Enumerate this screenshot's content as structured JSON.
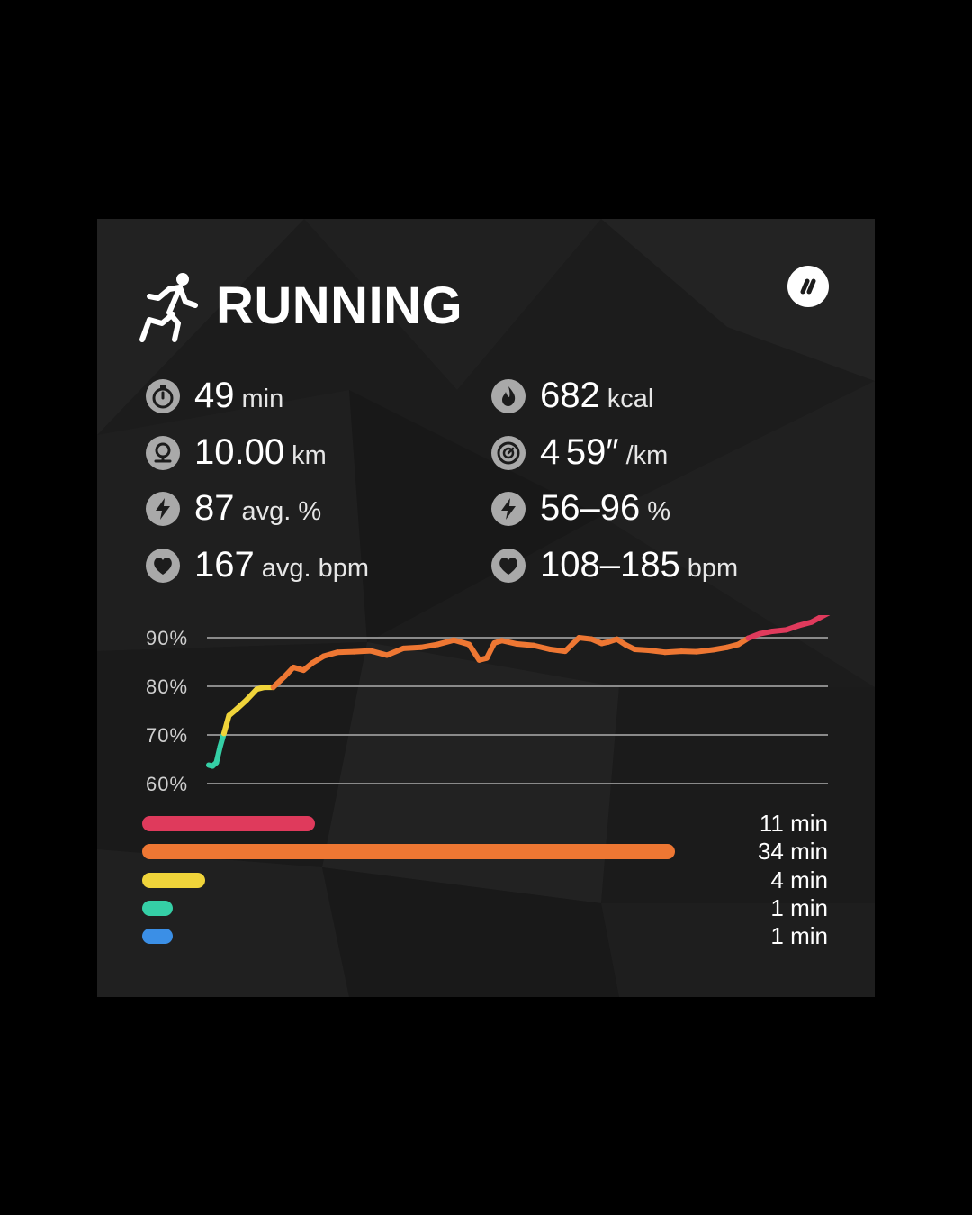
{
  "activity": {
    "title": "RUNNING",
    "icon": "running-person-icon",
    "brand_icon": "brand-logo-icon"
  },
  "stats": [
    {
      "icon": "stopwatch-icon",
      "value": "49",
      "unit": "min"
    },
    {
      "icon": "flame-icon",
      "value": "682",
      "unit": "kcal"
    },
    {
      "icon": "location-pin-icon",
      "value": "10.00",
      "unit": "km"
    },
    {
      "icon": "speedometer-icon",
      "value": "4 59″",
      "unit": "/km"
    },
    {
      "icon": "lightning-icon",
      "value": "87",
      "unit": "avg. %"
    },
    {
      "icon": "lightning-icon",
      "value": "56–96",
      "unit": "%"
    },
    {
      "icon": "heart-icon",
      "value": "167",
      "unit": "avg. bpm"
    },
    {
      "icon": "heart-icon",
      "value": "108–185",
      "unit": "bpm"
    }
  ],
  "chart_data": {
    "type": "line",
    "title": "",
    "xlabel": "",
    "ylabel": "",
    "y_ticks": [
      "90%",
      "80%",
      "70%",
      "60%"
    ],
    "ylim": [
      60,
      97
    ],
    "xlim": [
      0,
      49
    ],
    "grid": true,
    "x": [
      0,
      0.3,
      0.6,
      0.9,
      1.2,
      1.6,
      2.2,
      3,
      3.8,
      4.4,
      5.1,
      6,
      6.7,
      7.5,
      8.2,
      9.1,
      10.2,
      11.5,
      12.8,
      14.1,
      15.4,
      16.8,
      18.1,
      19.4,
      20.6,
      21.4,
      22,
      22.6,
      23.2,
      24.4,
      25.7,
      27,
      28.2,
      29.3,
      30.3,
      31.1,
      31.6,
      32.3,
      33,
      33.7,
      34.8,
      36.1,
      37.4,
      38.6,
      39.9,
      41,
      41.9,
      42.7,
      43.6,
      44.6,
      45.7,
      46.7,
      47.7,
      48.4,
      49
    ],
    "values": [
      63.8,
      63.6,
      64.3,
      67.6,
      70.3,
      74,
      75.3,
      77.2,
      79.4,
      79.8,
      79.8,
      82,
      83.9,
      83.3,
      84.8,
      86.2,
      87,
      87.1,
      87.3,
      86.4,
      87.8,
      88.0,
      88.6,
      89.5,
      88.6,
      85.4,
      85.8,
      88.9,
      89.4,
      88.7,
      88.4,
      87.6,
      87.2,
      90.0,
      89.7,
      88.8,
      89.1,
      89.7,
      88.5,
      87.6,
      87.4,
      87.0,
      87.2,
      87.1,
      87.5,
      88.0,
      88.6,
      89.9,
      90.8,
      91.3,
      91.6,
      92.5,
      93.2,
      94.2,
      95.0
    ],
    "line_colors": {
      "red": "#df3a5c",
      "orange": "#ee7733",
      "yellow": "#f0d43a",
      "green": "#35cfa6"
    }
  },
  "zones": [
    {
      "color": "#df3a5c",
      "minutes": 11,
      "label": "11 min"
    },
    {
      "color": "#ee7733",
      "minutes": 34,
      "label": "34 min"
    },
    {
      "color": "#f0d43a",
      "minutes": 4,
      "label": "4 min"
    },
    {
      "color": "#35cfa6",
      "minutes": 1,
      "label": "1 min"
    },
    {
      "color": "#3b8fe6",
      "minutes": 1,
      "label": "1 min"
    }
  ],
  "colors": {
    "background": "#000000",
    "card": "#1c1c1c",
    "icon_gray": "#a9a9a9",
    "text": "#ffffff"
  }
}
